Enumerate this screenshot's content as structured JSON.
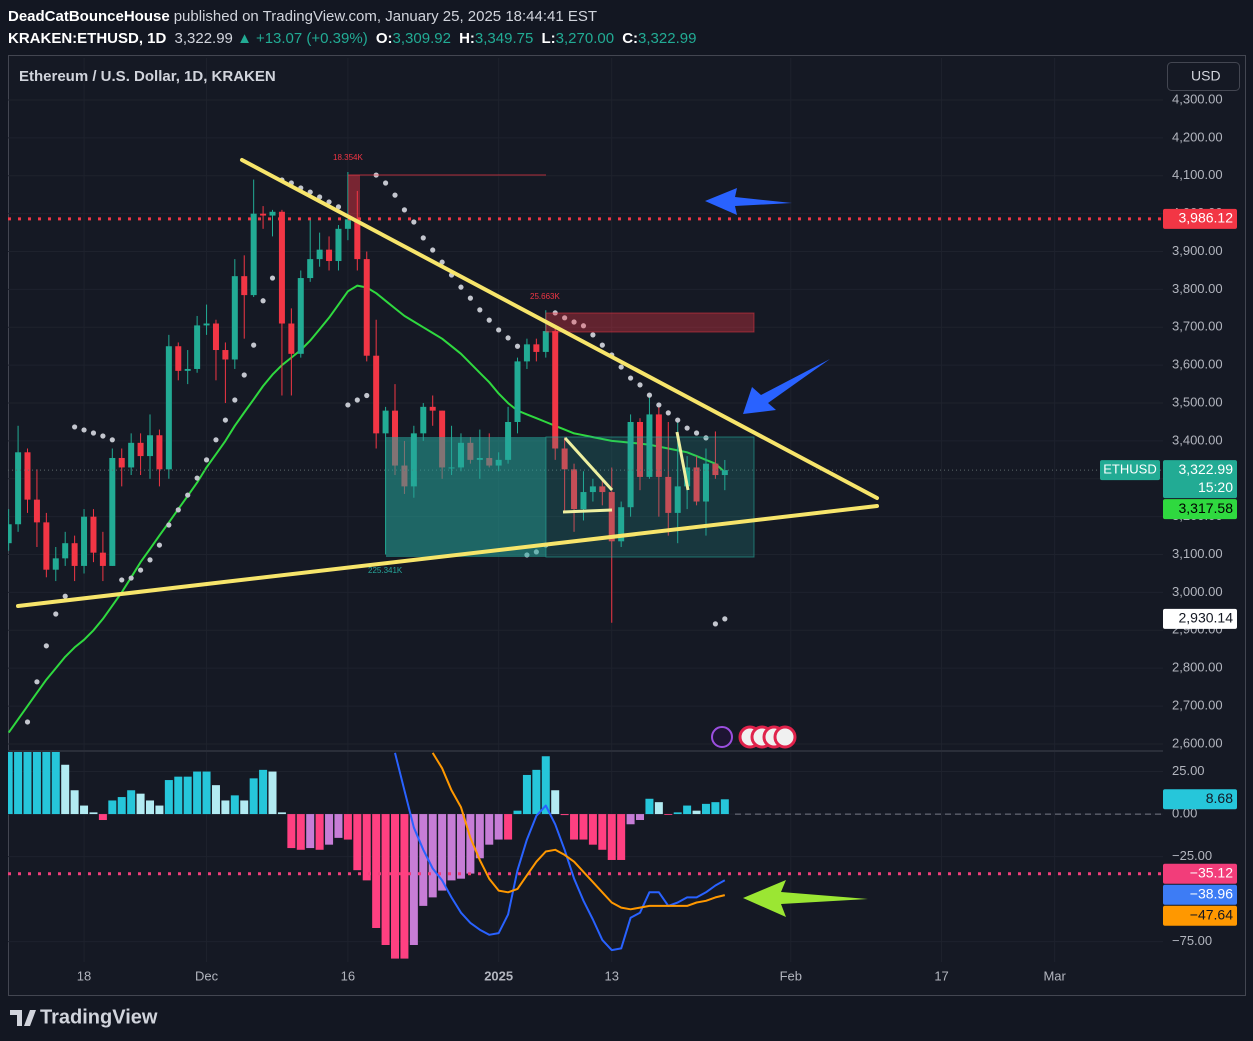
{
  "header": {
    "author": "DeadCatBounceHouse",
    "published": "published on TradingView.com, January 25, 2025 18:44:41 EST",
    "symbol": "KRAKEN:ETHUSD, 1D",
    "last": "3,322.99",
    "arrow": "▲",
    "change": "+13.07 (+0.39%)",
    "ohlc": [
      {
        "key": "O:",
        "value": "3,309.92"
      },
      {
        "key": "H:",
        "value": "3,349.75"
      },
      {
        "key": "L:",
        "value": "3,270.00"
      },
      {
        "key": "C:",
        "value": "3,322.99"
      }
    ]
  },
  "chart_data": [
    {
      "type": "candlestick",
      "title": "Ethereum / U.S. Dollar, 1D, KRAKEN",
      "currency": "USD",
      "symbol_tag": "ETHUSD",
      "last_label": "3,322.99",
      "countdown": "15:20",
      "up_color": "#22ab94",
      "down_color": "#f23645",
      "grid": true,
      "candles": [
        [
          3130,
          3220,
          3110,
          3180
        ],
        [
          3180,
          3440,
          3160,
          3370
        ],
        [
          3370,
          3380,
          3210,
          3245
        ],
        [
          3245,
          3325,
          3120,
          3185
        ],
        [
          3185,
          3210,
          3040,
          3060
        ],
        [
          3060,
          3120,
          3030,
          3090
        ],
        [
          3090,
          3160,
          3070,
          3130
        ],
        [
          3130,
          3150,
          3030,
          3070
        ],
        [
          3070,
          3220,
          3050,
          3200
        ],
        [
          3200,
          3220,
          3080,
          3105
        ],
        [
          3105,
          3160,
          3030,
          3070
        ],
        [
          3070,
          3380,
          3070,
          3355
        ],
        [
          3355,
          3380,
          3280,
          3330
        ],
        [
          3330,
          3420,
          3310,
          3395
        ],
        [
          3395,
          3420,
          3310,
          3360
        ],
        [
          3360,
          3470,
          3300,
          3415
        ],
        [
          3415,
          3430,
          3280,
          3325
        ],
        [
          3325,
          3680,
          3300,
          3650
        ],
        [
          3650,
          3660,
          3560,
          3585
        ],
        [
          3585,
          3640,
          3550,
          3590
        ],
        [
          3590,
          3730,
          3580,
          3705
        ],
        [
          3705,
          3760,
          3680,
          3710
        ],
        [
          3710,
          3720,
          3560,
          3640
        ],
        [
          3640,
          3660,
          3500,
          3615
        ],
        [
          3615,
          3880,
          3590,
          3835
        ],
        [
          3835,
          3890,
          3670,
          3785
        ],
        [
          3785,
          4090,
          3780,
          4000
        ],
        [
          4000,
          4020,
          3960,
          3995
        ],
        [
          3995,
          4010,
          3940,
          4005
        ],
        [
          4005,
          4010,
          3520,
          3710
        ],
        [
          3710,
          3750,
          3520,
          3630
        ],
        [
          3630,
          3850,
          3620,
          3830
        ],
        [
          3830,
          3990,
          3820,
          3880
        ],
        [
          3880,
          3950,
          3860,
          3905
        ],
        [
          3905,
          3940,
          3850,
          3875
        ],
        [
          3875,
          3970,
          3850,
          3960
        ],
        [
          3960,
          4110,
          3930,
          3985
        ],
        [
          3985,
          4060,
          3850,
          3880
        ],
        [
          3880,
          3900,
          3610,
          3625
        ],
        [
          3625,
          3720,
          3380,
          3420
        ],
        [
          3420,
          3490,
          3100,
          3480
        ],
        [
          3480,
          3550,
          3310,
          3335
        ],
        [
          3335,
          3400,
          3260,
          3280
        ],
        [
          3280,
          3440,
          3250,
          3420
        ],
        [
          3420,
          3500,
          3400,
          3490
        ],
        [
          3490,
          3520,
          3440,
          3480
        ],
        [
          3480,
          3480,
          3300,
          3330
        ],
        [
          3330,
          3440,
          3310,
          3330
        ],
        [
          3330,
          3420,
          3320,
          3395
        ],
        [
          3395,
          3410,
          3340,
          3350
        ],
        [
          3350,
          3430,
          3300,
          3355
        ],
        [
          3355,
          3420,
          3330,
          3335
        ],
        [
          3335,
          3370,
          3320,
          3350
        ],
        [
          3350,
          3490,
          3340,
          3450
        ],
        [
          3450,
          3620,
          3420,
          3610
        ],
        [
          3610,
          3670,
          3590,
          3655
        ],
        [
          3655,
          3670,
          3610,
          3635
        ],
        [
          3635,
          3745,
          3620,
          3690
        ],
        [
          3690,
          3700,
          3350,
          3380
        ],
        [
          3380,
          3410,
          3210,
          3325
        ],
        [
          3325,
          3340,
          3160,
          3220
        ],
        [
          3220,
          3320,
          3190,
          3265
        ],
        [
          3265,
          3300,
          3240,
          3280
        ],
        [
          3280,
          3300,
          3230,
          3265
        ],
        [
          3265,
          3330,
          2920,
          3135
        ],
        [
          3135,
          3240,
          3120,
          3225
        ],
        [
          3225,
          3470,
          3200,
          3450
        ],
        [
          3450,
          3460,
          3270,
          3305
        ],
        [
          3305,
          3520,
          3300,
          3470
        ],
        [
          3470,
          3490,
          3200,
          3305
        ],
        [
          3305,
          3450,
          3150,
          3210
        ],
        [
          3210,
          3460,
          3130,
          3280
        ],
        [
          3280,
          3360,
          3220,
          3330
        ],
        [
          3330,
          3360,
          3230,
          3240
        ],
        [
          3240,
          3380,
          3150,
          3340
        ],
        [
          3340,
          3425,
          3300,
          3309.92
        ],
        [
          3309.92,
          3349.75,
          3270,
          3322.99
        ]
      ],
      "ma": {
        "color": "#2fd93f",
        "last_label": "3,317.58",
        "values": [
          2630,
          2665,
          2700,
          2735,
          2770,
          2800,
          2830,
          2855,
          2875,
          2900,
          2930,
          2965,
          3000,
          3040,
          3080,
          3115,
          3150,
          3185,
          3220,
          3255,
          3290,
          3330,
          3365,
          3400,
          3440,
          3475,
          3510,
          3545,
          3575,
          3600,
          3620,
          3640,
          3665,
          3695,
          3725,
          3760,
          3795,
          3810,
          3805,
          3790,
          3770,
          3750,
          3730,
          3715,
          3700,
          3685,
          3670,
          3650,
          3630,
          3605,
          3580,
          3555,
          3525,
          3500,
          3480,
          3470,
          3460,
          3450,
          3440,
          3430,
          3420,
          3415,
          3410,
          3405,
          3400,
          3398,
          3395,
          3393,
          3390,
          3385,
          3380,
          3375,
          3370,
          3360,
          3350,
          3340,
          3317.58
        ]
      },
      "psar": {
        "color": "#c3c6ce",
        "last_label": "2,930.14",
        "values": [
          null,
          null,
          2658,
          2764,
          2859,
          2943,
          2990,
          3437,
          3429,
          3421,
          3413,
          3403,
          3033,
          3038,
          3059,
          3086,
          3125,
          3178,
          3218,
          3257,
          3302,
          3350,
          3403,
          3455,
          3508,
          3574,
          3653,
          3770,
          3830,
          4089,
          4081,
          4068,
          4057,
          4044,
          4031,
          4018,
          3495,
          3508,
          3520,
          4102,
          4081,
          4049,
          4010,
          3978,
          3936,
          3904,
          3872,
          3838,
          3806,
          3777,
          3746,
          3719,
          3693,
          3672,
          3650,
          3099,
          3107,
          3125,
          3738,
          3725,
          3714,
          3704,
          3680,
          3653,
          3627,
          3595,
          3566,
          3548,
          3521,
          3495,
          3474,
          3455,
          3434,
          3421,
          3408,
          2917,
          2930.14
        ]
      },
      "levels": [
        {
          "value": 3986.12,
          "label": "3,986.12",
          "color": "#f23645"
        }
      ],
      "annotations": [
        "18.354K",
        "25.663K",
        "225.341K"
      ],
      "xlim": [
        -0.07,
        122.5
      ],
      "xticks": [
        {
          "value": 8,
          "label": "18"
        },
        {
          "value": 21,
          "label": "Dec"
        },
        {
          "value": 36,
          "label": "16"
        },
        {
          "value": 52,
          "label": "2025"
        },
        {
          "value": 64,
          "label": "13"
        },
        {
          "value": 83,
          "label": "Feb"
        },
        {
          "value": 99,
          "label": "17"
        },
        {
          "value": 111,
          "label": "Mar"
        }
      ],
      "ylim": [
        2584,
        4411
      ],
      "yticks": [
        {
          "value": 2600,
          "label": "2,600.00"
        },
        {
          "value": 2700,
          "label": "2,700.00"
        },
        {
          "value": 2800,
          "label": "2,800.00"
        },
        {
          "value": 2900,
          "label": "2,900.00"
        },
        {
          "value": 3000,
          "label": "3,000.00"
        },
        {
          "value": 3100,
          "label": "3,100.00"
        },
        {
          "value": 3200,
          "label": "3,200.00"
        },
        {
          "value": 3300,
          "label": "3,300.00"
        },
        {
          "value": 3400,
          "label": "3,400.00"
        },
        {
          "value": 3500,
          "label": "3,500.00"
        },
        {
          "value": 3600,
          "label": "3,600.00"
        },
        {
          "value": 3700,
          "label": "3,700.00"
        },
        {
          "value": 3800,
          "label": "3,800.00"
        },
        {
          "value": 3900,
          "label": "3,900.00"
        },
        {
          "value": 4000,
          "label": "4,000.00"
        },
        {
          "value": 4100,
          "label": "4,100.00"
        },
        {
          "value": 4200,
          "label": "4,200.00"
        },
        {
          "value": 4300,
          "label": "4,300.00"
        }
      ]
    },
    {
      "type": "bar",
      "colors": {
        "pos_up": "#26c6da",
        "pos_down": "#b2ebf2",
        "neg_down": "#ff4081",
        "neg_up": "#c77dd6"
      },
      "last_label": "8.68",
      "values": [
        40,
        40,
        40,
        40,
        40,
        40,
        29,
        14,
        5,
        1,
        -3.5,
        8,
        10,
        14,
        12,
        8,
        5,
        20,
        22,
        22,
        25,
        25,
        17,
        8,
        11,
        8,
        21,
        26,
        25,
        1,
        -20,
        -21,
        -20,
        -21,
        -18,
        -14,
        -15,
        -33,
        -39,
        -67,
        -77,
        -85,
        -85,
        -77,
        -54,
        -49,
        -45,
        -39,
        -38,
        -35,
        -26,
        -18,
        -15,
        -15,
        2,
        23,
        26,
        34,
        14,
        -0.6,
        -15,
        -15,
        -18,
        -21,
        -27,
        -27,
        -6,
        -3.5,
        9,
        7,
        -0.5,
        1,
        5,
        2,
        6,
        7,
        8.68
      ],
      "series": [
        {
          "color": "#2962ff",
          "label_color": "#3d7cf5",
          "last_label": "−38.96",
          "values": [
            null,
            null,
            null,
            null,
            null,
            null,
            null,
            null,
            null,
            null,
            null,
            null,
            null,
            null,
            null,
            null,
            null,
            null,
            null,
            null,
            null,
            null,
            null,
            null,
            null,
            null,
            null,
            null,
            null,
            null,
            null,
            null,
            null,
            null,
            null,
            null,
            null,
            null,
            null,
            null,
            null,
            36,
            14,
            -8,
            -21,
            -32,
            -39,
            -49,
            -58,
            -64,
            -68,
            -71,
            -70,
            -59,
            -33,
            -15,
            -1,
            5,
            -6,
            -21,
            -38,
            -51,
            -62,
            -74,
            -80,
            -79,
            -61,
            -58,
            -46,
            -46,
            -54,
            -52,
            -49,
            -49,
            -46,
            -42,
            -38.96
          ]
        },
        {
          "color": "#ff9800",
          "label_color": "#ff9800",
          "last_label": "−47.64",
          "values": [
            null,
            null,
            null,
            null,
            null,
            null,
            null,
            null,
            null,
            null,
            null,
            null,
            null,
            null,
            null,
            null,
            null,
            null,
            null,
            null,
            null,
            null,
            null,
            null,
            null,
            null,
            null,
            null,
            null,
            null,
            null,
            null,
            null,
            null,
            null,
            null,
            null,
            null,
            null,
            null,
            null,
            null,
            null,
            null,
            null,
            36,
            27,
            14,
            4,
            -14,
            -27,
            -38,
            -45,
            -46,
            -44,
            -36,
            -28,
            -22,
            -21,
            -24,
            -28,
            -34,
            -40,
            -46,
            -52,
            -55,
            -56,
            -55,
            -54,
            -54,
            -54,
            -54,
            -54,
            -52,
            -51,
            -49,
            -47.64
          ]
        }
      ],
      "levels": [
        {
          "value": -35.12,
          "label": "−35.12",
          "color": "#f23d7a"
        }
      ],
      "ylim": [
        -87,
        36.5
      ],
      "yticks": [
        {
          "value": 25,
          "label": "25.00"
        },
        {
          "value": 0,
          "label": "0.00"
        },
        {
          "value": -25,
          "label": "−25.00"
        },
        {
          "value": -75,
          "label": "−75.00"
        }
      ]
    }
  ],
  "footer": {
    "brand": "TradingView"
  }
}
